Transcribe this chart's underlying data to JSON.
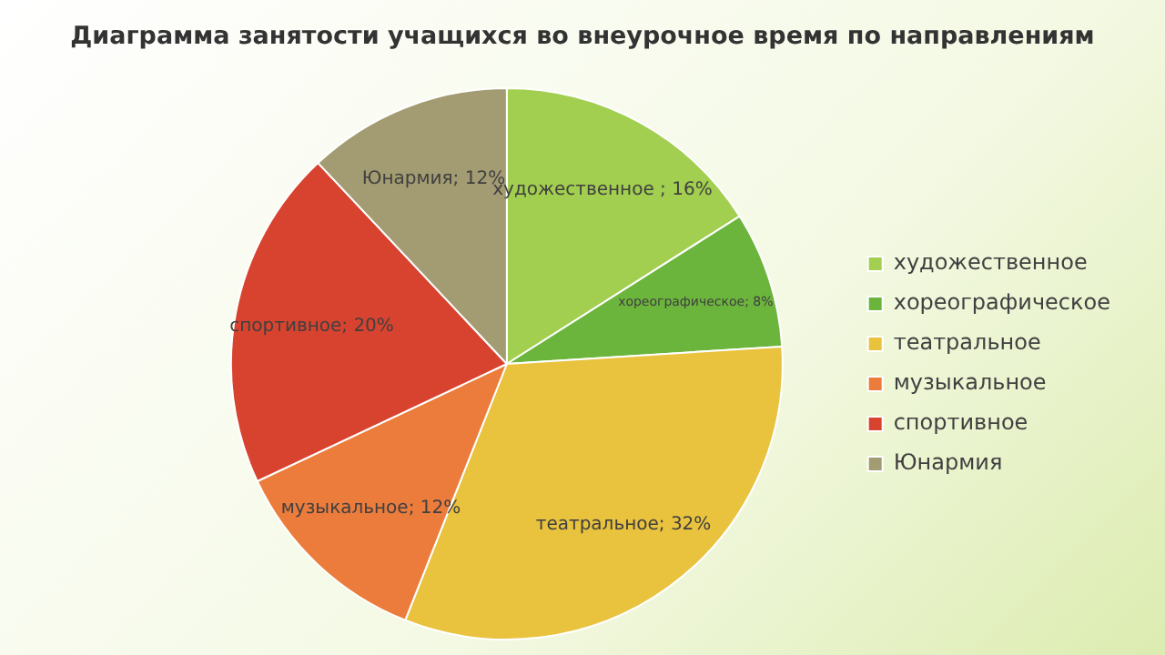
{
  "chart_data": {
    "type": "pie",
    "title": "Диаграмма занятости учащихся во внеурочное время по направлениям",
    "categories": [
      "художественное",
      "хореографическое",
      "театральное",
      "музыкальное",
      "спортивное",
      "Юнармия"
    ],
    "values": [
      16,
      8,
      32,
      12,
      20,
      12
    ],
    "colors": [
      "#a2cf4f",
      "#6cb53c",
      "#e9c23e",
      "#ec7c3c",
      "#d8432f",
      "#a39b72"
    ],
    "value_labels": [
      "художественное ; 16%",
      "хореографическое; 8%",
      "театральное; 32%",
      "музыкальное; 12%",
      "спортивное; 20%",
      "Юнармия; 12%"
    ],
    "legend": "right"
  }
}
